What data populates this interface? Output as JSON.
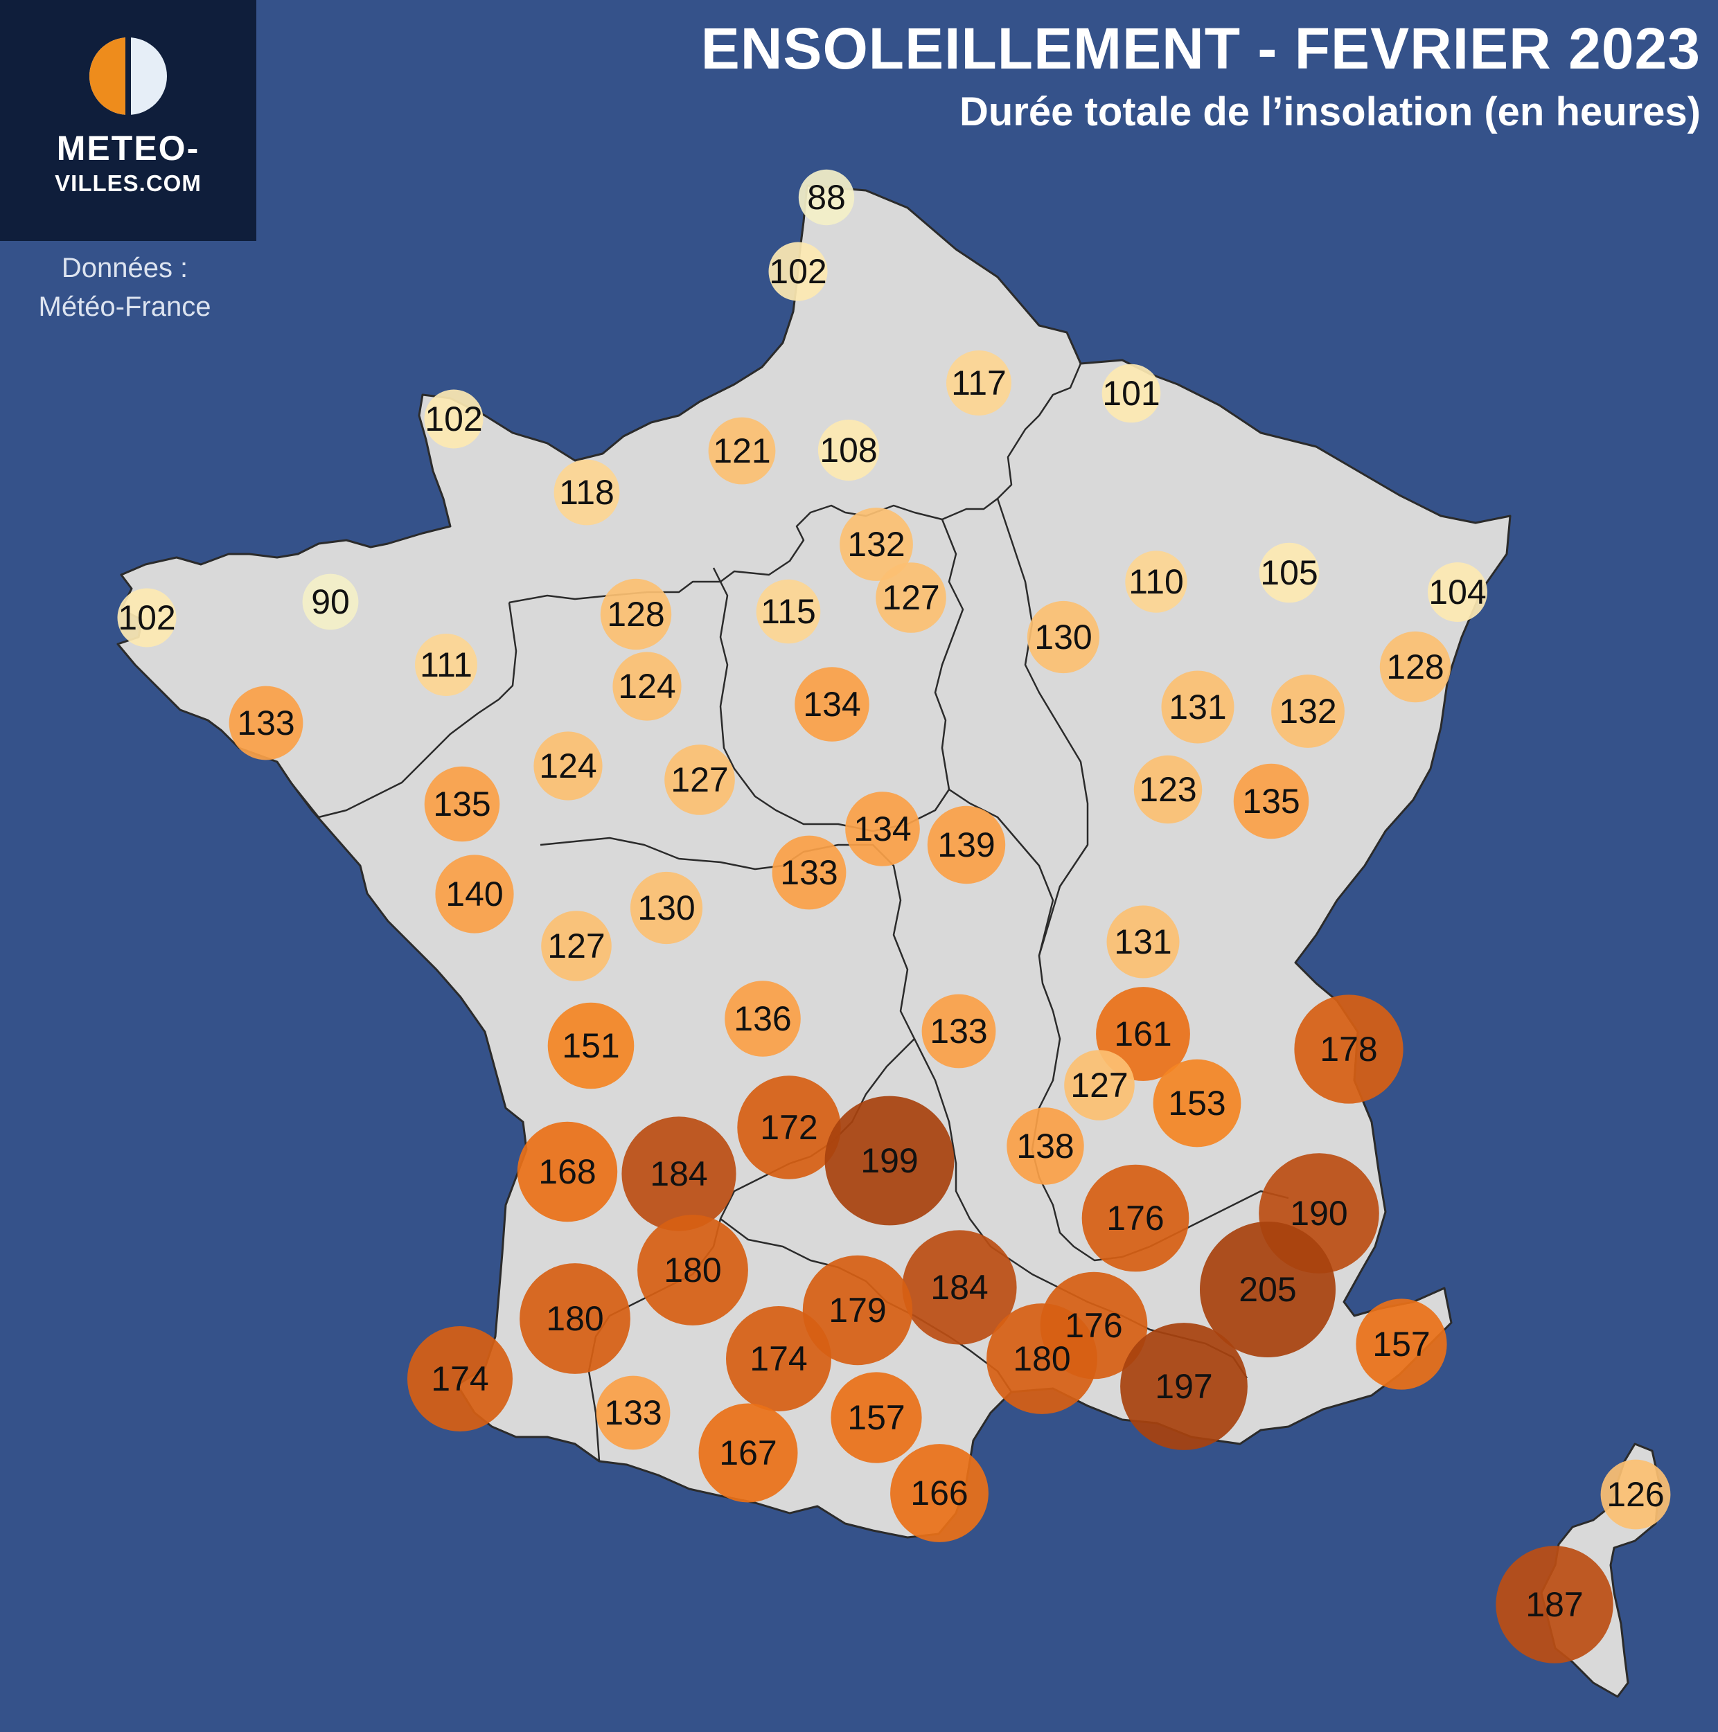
{
  "header": {
    "title": "ENSOLEILLEMENT - FEVRIER 2023",
    "subtitle": "Durée totale de l’insolation (en heures)"
  },
  "brand": {
    "line1": "METEO-",
    "line2": "VILLES.COM",
    "logo_icon": "half-sun-half-moon-icon"
  },
  "source": {
    "line1": "Données :",
    "line2": "Météo-France"
  },
  "colors": {
    "background": "#35528a",
    "land": "#d9d9d9",
    "borders": "#2b2b2b",
    "scale": [
      "#f4f0c8",
      "#fde9b2",
      "#fdd692",
      "#fcc072",
      "#fba148",
      "#f48524",
      "#ea7118",
      "#d75f14",
      "#bc4e14",
      "#a8420e"
    ]
  },
  "map_data": {
    "type": "proportional-symbol-map",
    "unit": "heures",
    "values": [
      88,
      102,
      102,
      117,
      101,
      121,
      108,
      118,
      102,
      90,
      128,
      132,
      127,
      115,
      110,
      105,
      104,
      111,
      130,
      128,
      133,
      124,
      134,
      131,
      132,
      124,
      127,
      123,
      135,
      135,
      134,
      139,
      133,
      140,
      130,
      127,
      131,
      136,
      133,
      161,
      151,
      178,
      127,
      153,
      172,
      199,
      138,
      168,
      184,
      176,
      190,
      180,
      205,
      184,
      179,
      180,
      176,
      157,
      174,
      180,
      197,
      174,
      133,
      157,
      167,
      166,
      126,
      187
    ]
  }
}
